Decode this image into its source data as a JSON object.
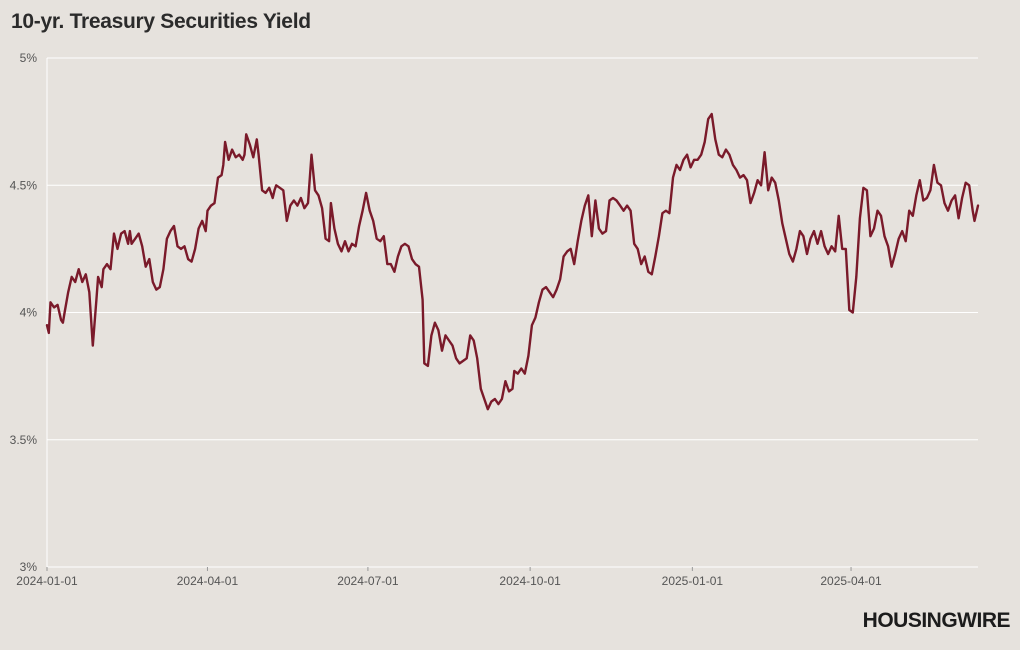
{
  "header": {
    "title": "10-yr. Treasury Securities Yield"
  },
  "brand": {
    "logo_text": "HOUSINGWIRE"
  },
  "colors": {
    "line": "#7a1a2a",
    "grid": "#ffffff",
    "background": "#e6e2dd",
    "text": "#555555"
  },
  "chart_data": {
    "type": "line",
    "title": "10-yr. Treasury Securities Yield",
    "xlabel": "",
    "ylabel": "",
    "ylim": [
      3,
      5
    ],
    "y_ticks": [
      3,
      3.5,
      4,
      4.5,
      5
    ],
    "y_tick_labels": [
      "3%",
      "3.5%",
      "4%",
      "4.5%",
      "5%"
    ],
    "x_tick_labels": [
      "2024-01-01",
      "2024-04-01",
      "2024-07-01",
      "2024-10-01",
      "2025-01-01",
      "2025-04-01"
    ],
    "x_tick_days": [
      0,
      91,
      182,
      274,
      366,
      456
    ],
    "x_range_days": [
      0,
      528
    ],
    "grid": true,
    "legend": "none",
    "series": [
      {
        "name": "10-yr. Treasury Yield",
        "x_days": [
          0,
          1,
          2,
          4,
          6,
          8,
          9,
          10,
          12,
          14,
          16,
          18,
          20,
          22,
          24,
          26,
          28,
          29,
          31,
          32,
          33,
          34,
          35,
          36,
          38,
          40,
          42,
          44,
          46,
          47,
          48,
          50,
          52,
          54,
          56,
          58,
          60,
          62,
          64,
          66,
          68,
          70,
          72,
          74,
          76,
          78,
          80,
          82,
          84,
          86,
          88,
          90,
          91,
          93,
          95,
          97,
          99,
          100,
          101,
          103,
          105,
          107,
          109,
          111,
          112,
          113,
          115,
          117,
          119,
          120,
          122,
          124,
          126,
          128,
          129,
          130,
          132,
          134,
          136,
          138,
          140,
          142,
          144,
          146,
          148,
          150,
          152,
          154,
          156,
          158,
          160,
          161,
          163,
          165,
          167,
          169,
          171,
          173,
          175,
          177,
          179,
          181,
          183,
          185,
          187,
          189,
          191,
          193,
          195,
          197,
          199,
          201,
          203,
          205,
          207,
          209,
          211,
          213,
          214,
          216,
          218,
          220,
          222,
          224,
          226,
          228,
          230,
          232,
          234,
          236,
          238,
          240,
          242,
          244,
          246,
          248,
          250,
          252,
          254,
          256,
          258,
          260,
          262,
          264,
          265,
          267,
          269,
          271,
          273,
          275,
          277,
          279,
          281,
          283,
          285,
          287,
          289,
          291,
          293,
          295,
          297,
          299,
          301,
          303,
          305,
          307,
          309,
          311,
          313,
          315,
          317,
          319,
          321,
          323,
          325,
          327,
          329,
          331,
          333,
          335,
          337,
          339,
          341,
          343,
          345,
          347,
          349,
          351,
          353,
          355,
          357,
          359,
          361,
          363,
          365,
          367,
          369,
          371,
          373,
          375,
          377,
          379,
          381,
          383,
          385,
          387,
          389,
          391,
          393,
          395,
          397,
          399,
          401,
          403,
          405,
          407,
          409,
          411,
          413,
          415,
          417,
          419,
          421,
          423,
          425,
          427,
          429,
          431,
          433,
          435,
          437,
          439,
          441,
          443,
          445,
          447,
          449,
          451,
          453,
          455,
          457,
          459,
          461,
          463,
          465,
          467,
          469,
          471,
          473,
          475,
          477,
          479,
          481,
          483,
          485,
          487,
          489,
          491,
          493,
          495,
          497,
          499,
          501,
          503,
          505,
          507,
          509,
          511,
          513,
          515,
          517,
          519,
          521,
          523,
          525,
          526,
          528
        ],
        "values": [
          3.95,
          3.92,
          4.04,
          4.02,
          4.03,
          3.97,
          3.96,
          4.0,
          4.08,
          4.14,
          4.12,
          4.17,
          4.12,
          4.15,
          4.08,
          3.87,
          4.05,
          4.14,
          4.1,
          4.17,
          4.18,
          4.19,
          4.18,
          4.17,
          4.31,
          4.25,
          4.31,
          4.32,
          4.27,
          4.32,
          4.27,
          4.29,
          4.31,
          4.26,
          4.18,
          4.21,
          4.12,
          4.09,
          4.1,
          4.17,
          4.29,
          4.32,
          4.34,
          4.26,
          4.25,
          4.26,
          4.21,
          4.2,
          4.25,
          4.33,
          4.36,
          4.32,
          4.4,
          4.42,
          4.43,
          4.53,
          4.54,
          4.58,
          4.67,
          4.6,
          4.64,
          4.61,
          4.62,
          4.6,
          4.62,
          4.7,
          4.66,
          4.61,
          4.68,
          4.62,
          4.48,
          4.47,
          4.49,
          4.45,
          4.48,
          4.5,
          4.49,
          4.48,
          4.36,
          4.42,
          4.44,
          4.42,
          4.45,
          4.41,
          4.43,
          4.62,
          4.48,
          4.46,
          4.41,
          4.29,
          4.28,
          4.43,
          4.33,
          4.27,
          4.24,
          4.28,
          4.24,
          4.27,
          4.26,
          4.34,
          4.4,
          4.47,
          4.4,
          4.36,
          4.29,
          4.28,
          4.3,
          4.19,
          4.19,
          4.16,
          4.22,
          4.26,
          4.27,
          4.26,
          4.21,
          4.19,
          4.18,
          4.05,
          3.8,
          3.79,
          3.91,
          3.96,
          3.93,
          3.85,
          3.91,
          3.89,
          3.87,
          3.82,
          3.8,
          3.81,
          3.82,
          3.91,
          3.89,
          3.82,
          3.7,
          3.66,
          3.62,
          3.65,
          3.66,
          3.64,
          3.66,
          3.73,
          3.69,
          3.7,
          3.77,
          3.76,
          3.78,
          3.76,
          3.83,
          3.95,
          3.98,
          4.04,
          4.09,
          4.1,
          4.08,
          4.06,
          4.09,
          4.13,
          4.22,
          4.24,
          4.25,
          4.19,
          4.28,
          4.36,
          4.42,
          4.46,
          4.3,
          4.44,
          4.33,
          4.31,
          4.32,
          4.44,
          4.45,
          4.44,
          4.42,
          4.4,
          4.42,
          4.4,
          4.27,
          4.25,
          4.19,
          4.22,
          4.16,
          4.15,
          4.22,
          4.3,
          4.39,
          4.4,
          4.39,
          4.53,
          4.58,
          4.56,
          4.6,
          4.62,
          4.57,
          4.6,
          4.6,
          4.62,
          4.67,
          4.76,
          4.78,
          4.68,
          4.62,
          4.61,
          4.64,
          4.62,
          4.58,
          4.56,
          4.53,
          4.54,
          4.52,
          4.43,
          4.47,
          4.52,
          4.5,
          4.63,
          4.48,
          4.53,
          4.51,
          4.44,
          4.35,
          4.29,
          4.23,
          4.2,
          4.25,
          4.32,
          4.3,
          4.23,
          4.29,
          4.32,
          4.27,
          4.32,
          4.26,
          4.23,
          4.26,
          4.24,
          4.38,
          4.25,
          4.25,
          4.01,
          4.0,
          4.14,
          4.37,
          4.49,
          4.48,
          4.3,
          4.33,
          4.4,
          4.38,
          4.3,
          4.26,
          4.18,
          4.23,
          4.29,
          4.32,
          4.28,
          4.4,
          4.38,
          4.46,
          4.52,
          4.44,
          4.45,
          4.48,
          4.58,
          4.51,
          4.5,
          4.43,
          4.4,
          4.44,
          4.46,
          4.37,
          4.45,
          4.51,
          4.5,
          4.4,
          4.36,
          4.42
        ]
      }
    ]
  }
}
